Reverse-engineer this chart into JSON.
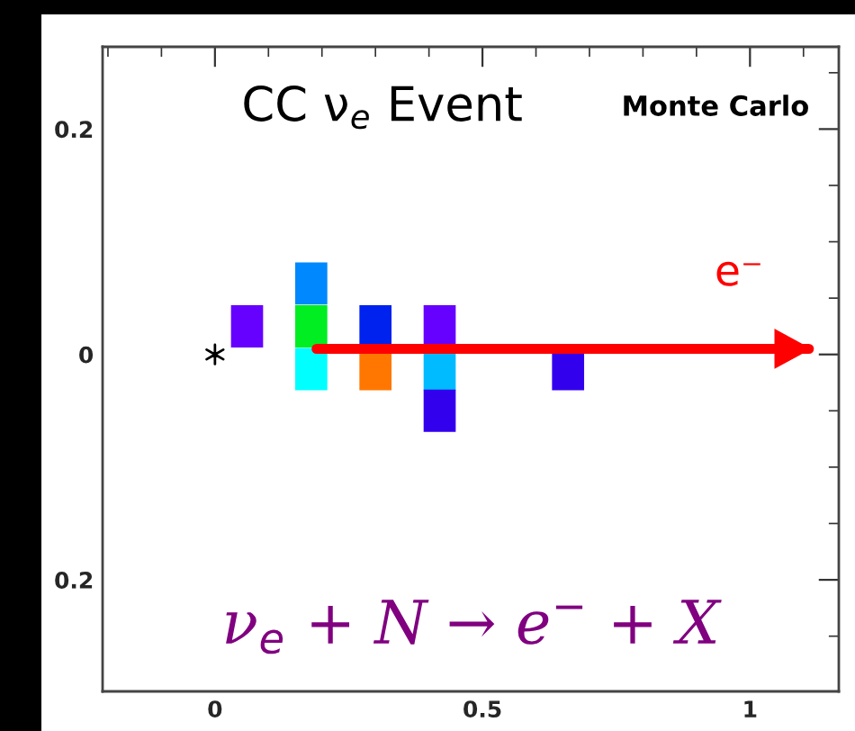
{
  "chart_data": {
    "type": "scatter",
    "title": "CC ν$_{e}$ Event",
    "subtitle": "Monte Carlo",
    "xlim": [
      -0.21,
      1.166
    ],
    "ylim": [
      -0.299,
      0.273
    ],
    "xticks": [
      0,
      0.5,
      1
    ],
    "yticks": [
      {
        "value": -0.2,
        "label": "0.2"
      },
      0,
      0.2
    ],
    "grid": false,
    "series": [
      {
        "marker": "square",
        "x": [
          0.06,
          0.18,
          0.18,
          0.18,
          0.3,
          0.3,
          0.42,
          0.42,
          0.42,
          0.66
        ],
        "values": [
          0.025,
          0.063,
          0.025,
          -0.013,
          0.025,
          -0.013,
          0.025,
          -0.013,
          -0.05,
          -0.013
        ],
        "colors": [
          "#6600ff",
          "#0088ff",
          "#00ee22",
          "#00ffff",
          "#0022ee",
          "#ff7700",
          "#6600ff",
          "#00bbff",
          "#3300ee",
          "#3300ee"
        ]
      },
      {
        "marker": "cross",
        "x": [
          0
        ],
        "values": [
          0
        ],
        "color": "#000000"
      },
      {
        "type": "line",
        "name": "e⁻",
        "x": [
          0.19,
          1.11
        ],
        "values": [
          0.005,
          0.005
        ],
        "color": "#ff0000"
      }
    ],
    "annotations": [
      "ν$_{e}$ + N → e$^{−}$ + X"
    ]
  }
}
